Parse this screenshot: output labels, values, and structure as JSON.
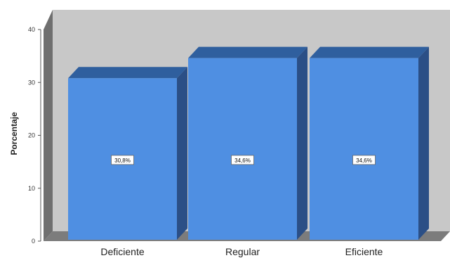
{
  "chart_data": {
    "type": "bar",
    "categories": [
      "Deficiente",
      "Regular",
      "Eficiente"
    ],
    "values": [
      30.8,
      34.6,
      34.6
    ],
    "value_labels": [
      "30,8%",
      "34,6%",
      "34,6%"
    ],
    "title": "",
    "xlabel": "",
    "ylabel": "Porcentaje",
    "ylim": [
      0,
      40
    ],
    "yticks": [
      0,
      10,
      20,
      30,
      40
    ],
    "ytick_labels": [
      "0",
      "10",
      "20",
      "30",
      "40"
    ],
    "grid": false,
    "legend": "none",
    "style": "3d-bars",
    "colors": {
      "bar_front": "#4f8fe2",
      "bar_top": "#2f5f9e",
      "bar_side": "#2b4f86",
      "plot_back": "#c8c8c8",
      "plot_left": "#6f6f6f",
      "plot_floor": "#7c7c7c"
    }
  }
}
